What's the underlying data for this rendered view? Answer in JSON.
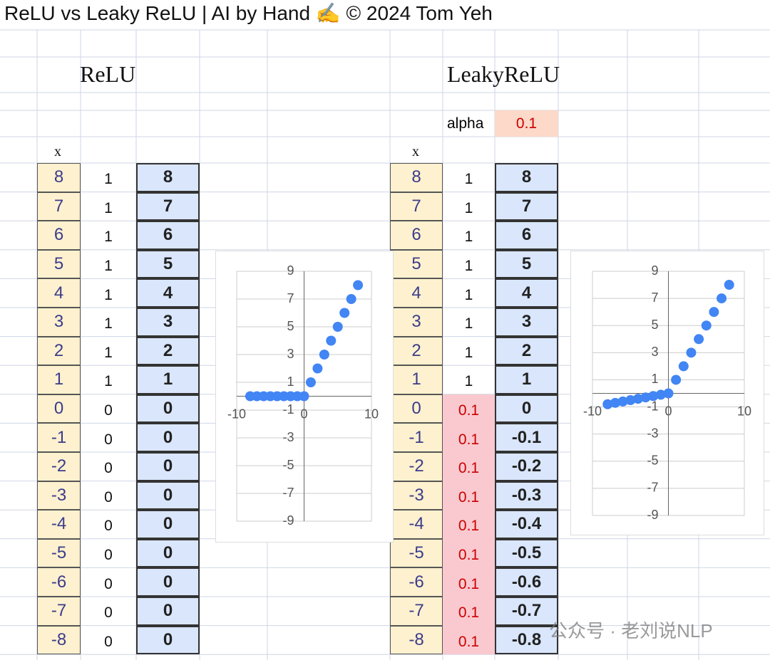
{
  "header": {
    "title": "ReLU vs Leaky ReLU | AI by Hand ✍️ © 2024 Tom Yeh"
  },
  "relu": {
    "heading": "ReLU",
    "x_label": "x",
    "x": [
      8,
      7,
      6,
      5,
      4,
      3,
      2,
      1,
      0,
      -1,
      -2,
      -3,
      -4,
      -5,
      -6,
      -7,
      -8
    ],
    "derivative": [
      1,
      1,
      1,
      1,
      1,
      1,
      1,
      1,
      0,
      0,
      0,
      0,
      0,
      0,
      0,
      0,
      0
    ],
    "output": [
      8,
      7,
      6,
      5,
      4,
      3,
      2,
      1,
      0,
      0,
      0,
      0,
      0,
      0,
      0,
      0,
      0
    ]
  },
  "leaky": {
    "heading": "LeakyReLU",
    "alpha_label": "alpha",
    "alpha": 0.1,
    "x_label": "x",
    "x": [
      8,
      7,
      6,
      5,
      4,
      3,
      2,
      1,
      0,
      -1,
      -2,
      -3,
      -4,
      -5,
      -6,
      -7,
      -8
    ],
    "derivative": [
      1,
      1,
      1,
      1,
      1,
      1,
      1,
      1,
      0.1,
      0.1,
      0.1,
      0.1,
      0.1,
      0.1,
      0.1,
      0.1,
      0.1
    ],
    "output": [
      8,
      7,
      6,
      5,
      4,
      3,
      2,
      1,
      0,
      -0.1,
      -0.2,
      -0.3,
      -0.4,
      -0.5,
      -0.6,
      -0.7,
      -0.8
    ]
  },
  "chart_data": [
    {
      "type": "scatter",
      "color": "#4285f4",
      "x": [
        8,
        7,
        6,
        5,
        4,
        3,
        2,
        1,
        0,
        -1,
        -2,
        -3,
        -4,
        -5,
        -6,
        -7,
        -8
      ],
      "y": [
        8,
        7,
        6,
        5,
        4,
        3,
        2,
        1,
        0,
        0,
        0,
        0,
        0,
        0,
        0,
        0,
        0
      ],
      "xlim": [
        -10,
        10
      ],
      "ylim": [
        -9,
        9
      ],
      "xticks": [
        -10,
        0,
        10
      ],
      "yticks": [
        9,
        7,
        5,
        3,
        1,
        -1,
        -3,
        -5,
        -7,
        -9
      ],
      "grid": true
    },
    {
      "type": "scatter",
      "color": "#4285f4",
      "x": [
        8,
        7,
        6,
        5,
        4,
        3,
        2,
        1,
        0,
        -1,
        -2,
        -3,
        -4,
        -5,
        -6,
        -7,
        -8
      ],
      "y": [
        8,
        7,
        6,
        5,
        4,
        3,
        2,
        1,
        0,
        -0.1,
        -0.2,
        -0.3,
        -0.4,
        -0.5,
        -0.6,
        -0.7,
        -0.8
      ],
      "xlim": [
        -10,
        10
      ],
      "ylim": [
        -9,
        9
      ],
      "xticks": [
        -10,
        0,
        10
      ],
      "yticks": [
        9,
        7,
        5,
        3,
        1,
        -1,
        -3,
        -5,
        -7,
        -9
      ],
      "grid": true
    }
  ],
  "watermark": "公众号 · 老刘说NLP"
}
